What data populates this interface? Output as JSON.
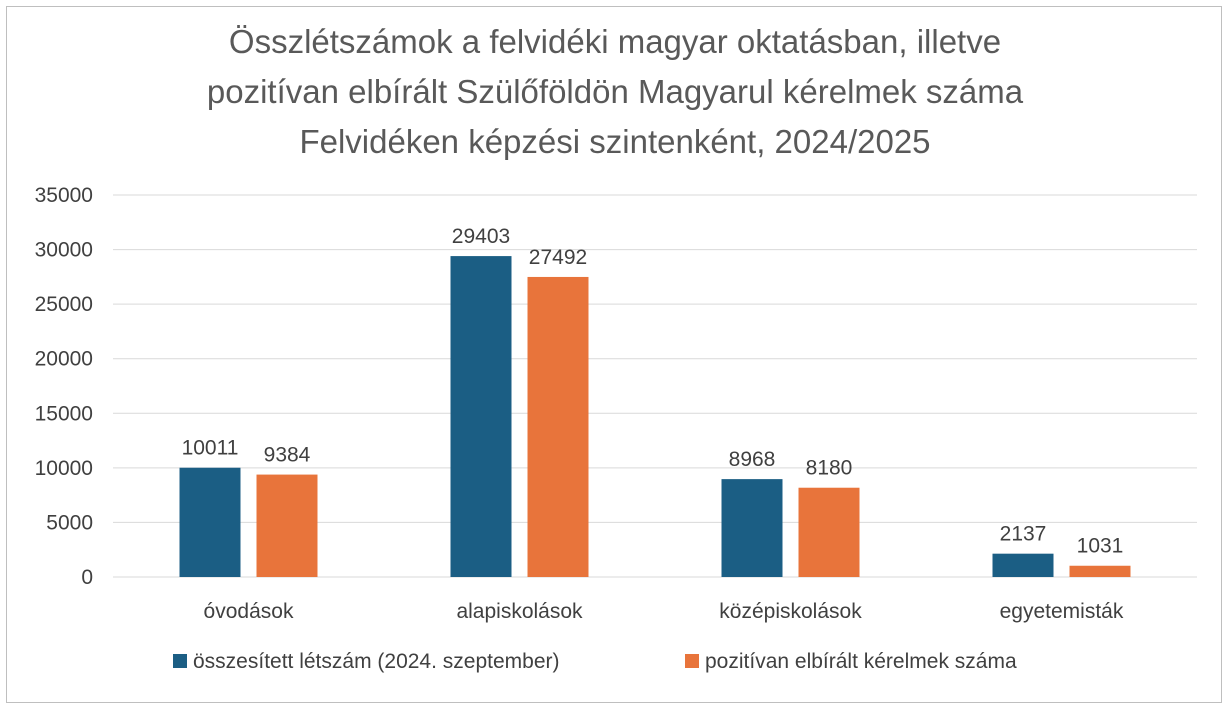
{
  "chart_data": {
    "type": "bar",
    "title_lines": [
      "Összlétszámok a felvidéki magyar oktatásban, illetve",
      "pozitívan elbírált Szülőföldön Magyarul kérelmek száma",
      "Felvidéken képzési szintenként, 2024/2025"
    ],
    "categories": [
      "óvodások",
      "alapiskolások",
      "középiskolások",
      "egyetemisták"
    ],
    "series": [
      {
        "name": "összesített létszám (2024. szeptember)",
        "color": "#1b5e84",
        "values": [
          10011,
          29403,
          8968,
          2137
        ]
      },
      {
        "name": "pozitívan elbírált kérelmek száma",
        "color": "#e8743b",
        "values": [
          9384,
          27492,
          8180,
          1031
        ]
      }
    ],
    "ylim": [
      0,
      35000
    ],
    "yticks": [
      "0",
      "5000",
      "10000",
      "15000",
      "20000",
      "25000",
      "30000",
      "35000"
    ],
    "grid": true,
    "legend_position": "bottom",
    "data_labels": true
  }
}
